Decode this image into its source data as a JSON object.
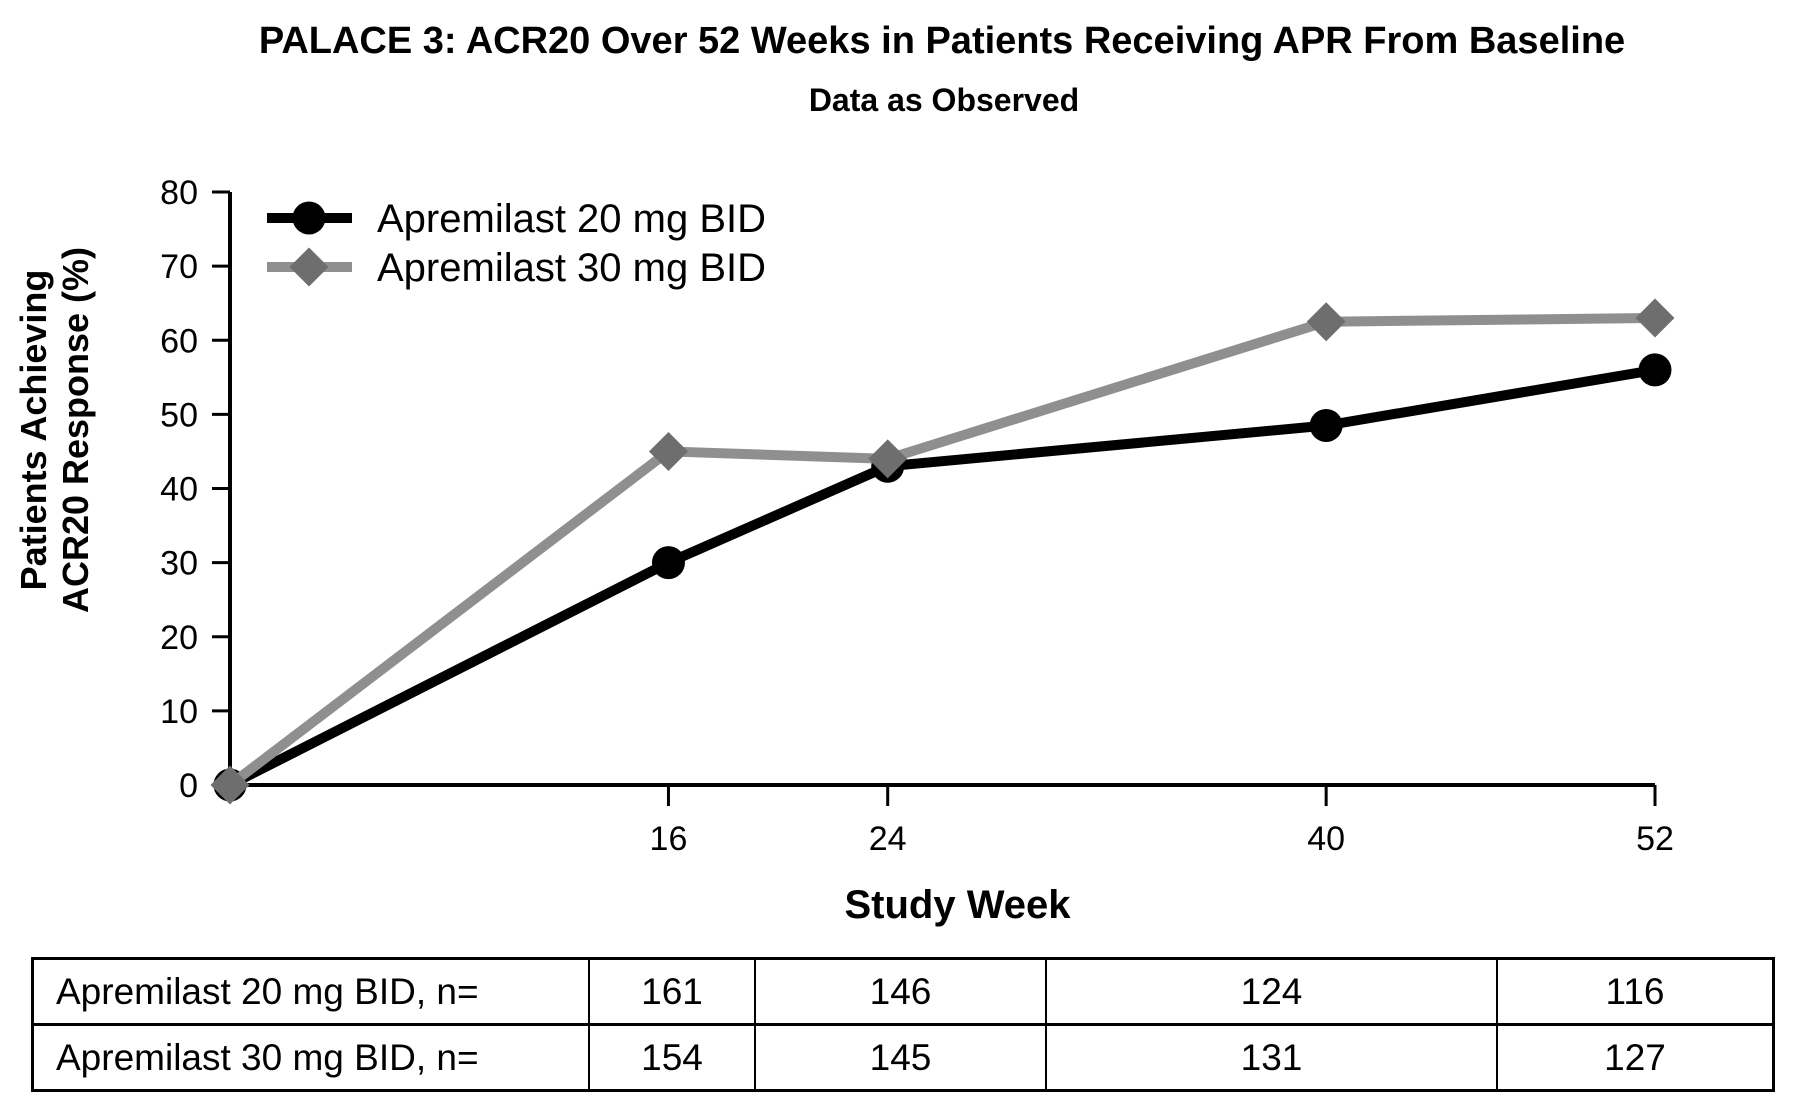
{
  "chart_data": {
    "type": "line",
    "title": "PALACE 3: ACR20 Over 52 Weeks in Patients Receiving APR From Baseline",
    "subtitle": "Data as Observed",
    "xlabel": "Study Week",
    "ylabel_lines": [
      "Patients Achieving",
      "ACR20 Response (%)"
    ],
    "x": [
      0,
      16,
      24,
      40,
      52
    ],
    "series": [
      {
        "name": "Apremilast 20 mg BID",
        "marker": "circle",
        "line_color": "#000000",
        "marker_color": "#000000",
        "values": [
          0,
          30,
          43,
          48.5,
          56
        ]
      },
      {
        "name": "Apremilast 30 mg BID",
        "marker": "diamond",
        "line_color": "#8f8f8f",
        "marker_color": "#6e6e6e",
        "values": [
          0,
          45,
          44,
          62.5,
          63
        ]
      }
    ],
    "xlim": [
      0,
      52
    ],
    "ylim": [
      0,
      80
    ],
    "x_ticks": [
      16,
      24,
      40,
      52
    ],
    "y_ticks": [
      0,
      10,
      20,
      30,
      40,
      50,
      60,
      70,
      80
    ],
    "grid": false,
    "legend_position": "top-left",
    "axis_color": "#000000"
  },
  "table": {
    "rows": [
      {
        "label": "Apremilast 20 mg BID, n=",
        "values": [
          "161",
          "146",
          "124",
          "116"
        ]
      },
      {
        "label": "Apremilast 30 mg BID, n=",
        "values": [
          "154",
          "145",
          "131",
          "127"
        ]
      }
    ]
  }
}
